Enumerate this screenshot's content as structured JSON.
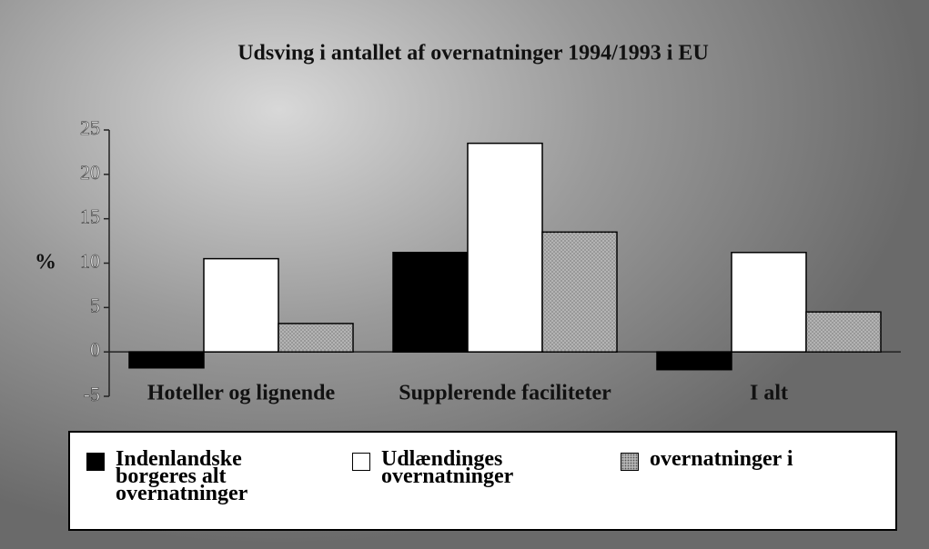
{
  "chart_data": {
    "type": "bar",
    "title": "Udsving i antallet af overnatninger 1994/1993 i EU",
    "y_label": "%",
    "categories": [
      "Hoteller og lignende",
      "Supplerende faciliteter",
      "I alt"
    ],
    "series": [
      {
        "name": "Indenlandske borgeres alt overnatninger",
        "color": "#000000",
        "values": [
          -1.8,
          11.2,
          -2
        ]
      },
      {
        "name": "Udlændinges overnatninger",
        "color": "#ffffff",
        "values": [
          10.5,
          23.5,
          11.2
        ]
      },
      {
        "name": "overnatninger i",
        "color": "#b4b4b4",
        "values": [
          3.2,
          13.5,
          4.5
        ]
      }
    ],
    "ylim": [
      -5,
      25
    ],
    "yticks": [
      -5,
      0,
      5,
      10,
      15,
      20,
      25
    ],
    "grid": false
  }
}
